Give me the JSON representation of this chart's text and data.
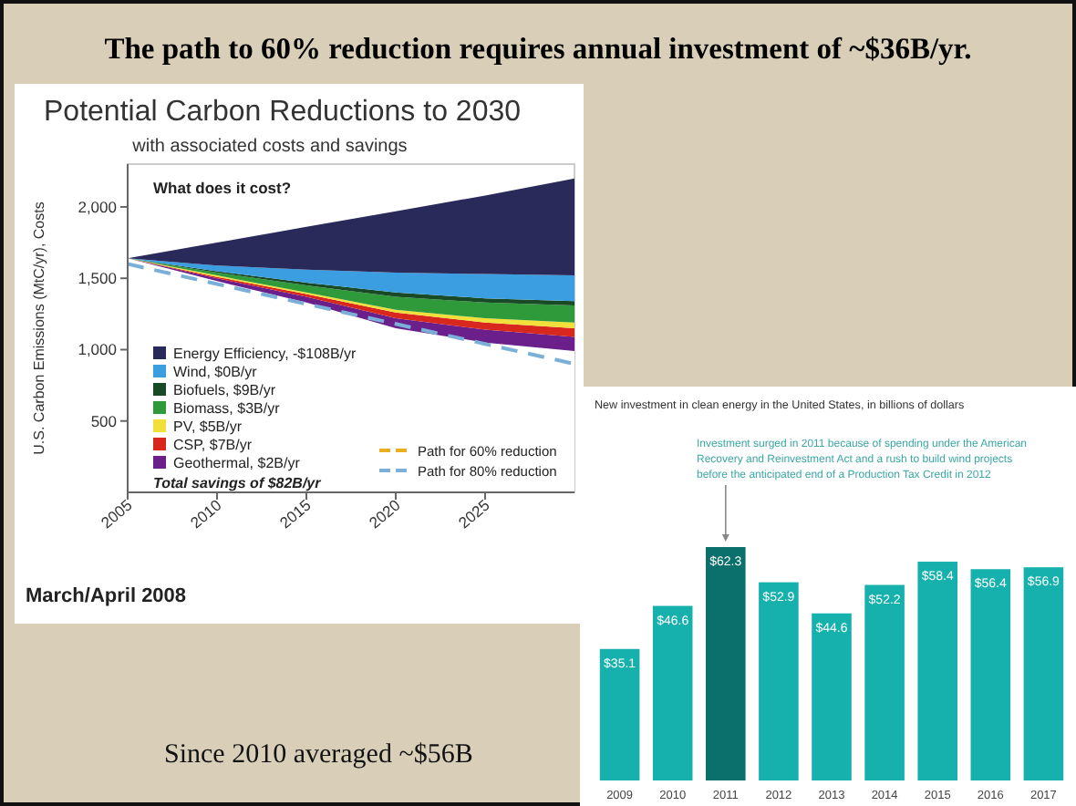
{
  "chart_data": [
    {
      "type": "area",
      "stacked": true,
      "title": "Potential Carbon Reductions to 2030",
      "subtitle": "with associated costs and savings",
      "ylabel": "U.S. Carbon Emissions (MtC/yr), Costs",
      "x": [
        2005,
        2010,
        2015,
        2020,
        2025,
        2030
      ],
      "xlim": [
        2005,
        2030
      ],
      "xticks": [
        2005,
        2010,
        2015,
        2020,
        2025
      ],
      "ylim": [
        0,
        2300
      ],
      "yticks": [
        {
          "value": 500,
          "label": "500"
        },
        {
          "value": 1000,
          "label": "1,000"
        },
        {
          "value": 1500,
          "label": "1,500"
        },
        {
          "value": 2000,
          "label": "2,000"
        }
      ],
      "legend": "bottom left",
      "series": [
        {
          "color": "#ffffff",
          "values": [
            1640,
            1480,
            1330,
            1150,
            1050,
            990
          ]
        },
        {
          "name": "Geothermal, $2B/yr",
          "color": "#6a1f8a",
          "values": [
            0,
            20,
            40,
            70,
            90,
            100
          ]
        },
        {
          "name": "CSP, $7B/yr",
          "color": "#d8281e",
          "values": [
            0,
            10,
            20,
            40,
            50,
            60
          ]
        },
        {
          "name": "PV, $5B/yr",
          "color": "#f2e03a",
          "values": [
            0,
            10,
            10,
            20,
            30,
            40
          ]
        },
        {
          "name": "Biomass, $3B/yr",
          "color": "#2f9a3a",
          "values": [
            0,
            20,
            50,
            90,
            110,
            120
          ]
        },
        {
          "name": "Biofuels, $9B/yr",
          "color": "#174a25",
          "values": [
            0,
            10,
            20,
            30,
            30,
            30
          ]
        },
        {
          "name": "Wind, $0B/yr",
          "color": "#3a9ee0",
          "values": [
            0,
            40,
            90,
            140,
            170,
            180
          ]
        },
        {
          "name": "Energy Efficiency, -$108B/yr",
          "color": "#2a2a5a",
          "values": [
            0,
            160,
            300,
            430,
            550,
            680
          ]
        },
        {
          "type": "line",
          "line_style": "dashed",
          "name": "Path for 60% reduction",
          "color": "#e8b020",
          "values": [
            null,
            null,
            null,
            null,
            null,
            null
          ]
        },
        {
          "type": "line",
          "line_style": "dashed",
          "name": "Path for 80% reduction",
          "color": "#7ab0d8",
          "values": [
            1600,
            1460,
            1320,
            1180,
            1040,
            900
          ]
        }
      ],
      "annotations": [
        "The path to 60% reduction requires annual investment of ~$36B/yr.",
        "What does it cost?",
        "Total savings of $82B/yr",
        "March/April 2008"
      ]
    },
    {
      "type": "bar",
      "title": "New investment in clean energy in the United States, in billions of dollars",
      "categories": [
        "2009",
        "2010",
        "2011",
        "2012",
        "2013",
        "2014",
        "2015",
        "2016",
        "2017"
      ],
      "values": [
        35.1,
        46.6,
        62.3,
        52.9,
        44.6,
        52.2,
        58.4,
        56.4,
        56.9
      ],
      "colors": [
        "#17b1ad",
        "#17b1ad",
        "#0b6f6b",
        "#17b1ad",
        "#17b1ad",
        "#17b1ad",
        "#17b1ad",
        "#17b1ad",
        "#17b1ad"
      ],
      "value_labels": [
        "$35.1",
        "$46.6",
        "$62.3",
        "$52.9",
        "$44.6",
        "$52.2",
        "$58.4",
        "$56.4",
        "$56.9"
      ],
      "annotations": [
        {
          "text": "Investment surged in 2011 because of spending under the American Recovery and Reinvestment Act and a rush to build wind projects before the anticipated end of a Production Tax Credit in 2012",
          "x": "2011",
          "y": 62.3
        },
        "Since 2010 averaged ~$56B"
      ]
    }
  ]
}
